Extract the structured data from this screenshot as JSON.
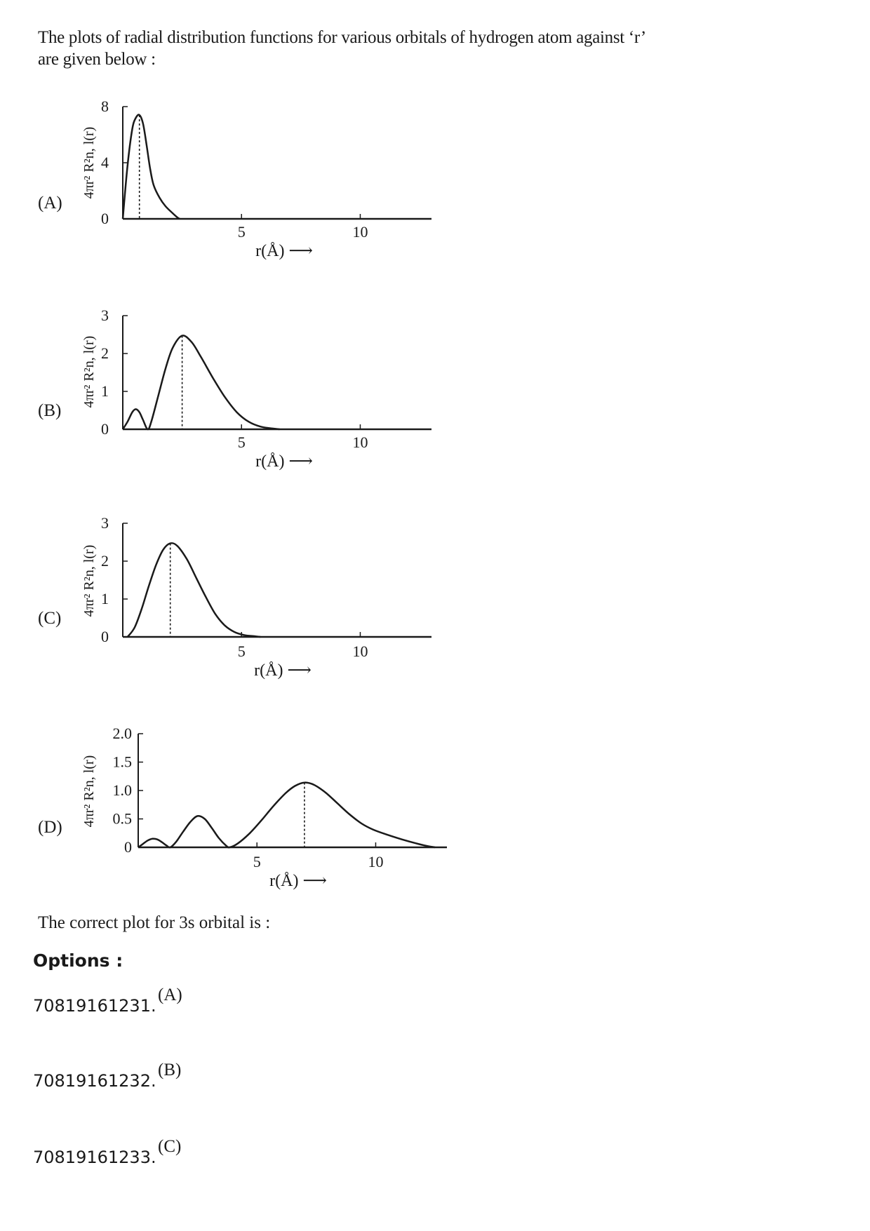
{
  "intro": "The plots of radial distribution functions for various orbitals of hydrogen atom against ‘r’ are given below :",
  "question": "The correct plot for 3s orbital is :",
  "options_heading": "Options :",
  "options": [
    {
      "id": "70819161231.",
      "value": "(A)"
    },
    {
      "id": "70819161232.",
      "value": "(B)"
    },
    {
      "id": "70819161233.",
      "value": "(C)"
    }
  ],
  "chart_data": [
    {
      "type": "line",
      "label": "(A)",
      "ylabel": "4πr² R²n, l(r)",
      "xlabel": "r(Å) ⟶",
      "xticks": [
        5,
        10
      ],
      "yticks": [
        "0",
        "4",
        "8"
      ],
      "xlim": [
        0,
        13
      ],
      "ylim": [
        0,
        8
      ],
      "peak_x": 0.7,
      "points": [
        [
          0,
          0
        ],
        [
          0.2,
          3.8
        ],
        [
          0.4,
          6.4
        ],
        [
          0.55,
          7.2
        ],
        [
          0.7,
          7.4
        ],
        [
          0.85,
          6.8
        ],
        [
          1.0,
          5.3
        ],
        [
          1.15,
          3.6
        ],
        [
          1.3,
          2.4
        ],
        [
          1.55,
          1.5
        ],
        [
          1.8,
          0.9
        ],
        [
          2.1,
          0.4
        ],
        [
          2.3,
          0.1
        ],
        [
          2.4,
          0
        ]
      ]
    },
    {
      "type": "line",
      "label": "(B)",
      "ylabel": "4πr² R²n, l(r)",
      "xlabel": "r(Å) ⟶",
      "xticks": [
        5,
        10
      ],
      "yticks": [
        "0",
        "1",
        "2",
        "3"
      ],
      "xlim": [
        0,
        13
      ],
      "ylim": [
        0,
        3
      ],
      "peak_x": 2.5,
      "points": [
        [
          0,
          0
        ],
        [
          0.2,
          0.2
        ],
        [
          0.4,
          0.45
        ],
        [
          0.55,
          0.53
        ],
        [
          0.7,
          0.45
        ],
        [
          0.85,
          0.25
        ],
        [
          1.05,
          0
        ],
        [
          1.2,
          0.2
        ],
        [
          1.5,
          0.9
        ],
        [
          1.8,
          1.6
        ],
        [
          2.1,
          2.15
        ],
        [
          2.5,
          2.47
        ],
        [
          2.9,
          2.3
        ],
        [
          3.3,
          1.9
        ],
        [
          3.8,
          1.35
        ],
        [
          4.3,
          0.85
        ],
        [
          4.8,
          0.45
        ],
        [
          5.3,
          0.2
        ],
        [
          5.8,
          0.07
        ],
        [
          6.3,
          0.02
        ],
        [
          6.6,
          0
        ]
      ]
    },
    {
      "type": "line",
      "label": "(C)",
      "ylabel": "4πr² R²n, l(r)",
      "xlabel": "r(Å) ⟶",
      "xticks": [
        5,
        10
      ],
      "yticks": [
        "0",
        "1",
        "2",
        "3"
      ],
      "xlim": [
        0,
        13
      ],
      "ylim": [
        0,
        3
      ],
      "peak_x": 2.0,
      "points": [
        [
          0.2,
          0
        ],
        [
          0.5,
          0.25
        ],
        [
          0.8,
          0.75
        ],
        [
          1.1,
          1.35
        ],
        [
          1.4,
          1.9
        ],
        [
          1.7,
          2.3
        ],
        [
          2.0,
          2.47
        ],
        [
          2.3,
          2.4
        ],
        [
          2.7,
          2.05
        ],
        [
          3.1,
          1.55
        ],
        [
          3.5,
          1.05
        ],
        [
          3.9,
          0.6
        ],
        [
          4.3,
          0.3
        ],
        [
          4.7,
          0.13
        ],
        [
          5.1,
          0.05
        ],
        [
          5.5,
          0.02
        ],
        [
          5.8,
          0
        ]
      ]
    },
    {
      "type": "line",
      "label": "(D)",
      "ylabel": "4πr² R²n, l(r)",
      "xlabel": "r(Å) ⟶",
      "xticks": [
        5,
        10
      ],
      "yticks": [
        "0",
        "0.5",
        "1.0",
        "1.5",
        "2.0"
      ],
      "xlim": [
        0,
        13
      ],
      "ylim": [
        0,
        2.0
      ],
      "peak_x": 7.0,
      "points": [
        [
          0,
          0
        ],
        [
          0.2,
          0.06
        ],
        [
          0.4,
          0.12
        ],
        [
          0.6,
          0.15
        ],
        [
          0.8,
          0.14
        ],
        [
          1.0,
          0.09
        ],
        [
          1.2,
          0.03
        ],
        [
          1.35,
          0
        ],
        [
          1.6,
          0.1
        ],
        [
          1.9,
          0.28
        ],
        [
          2.2,
          0.45
        ],
        [
          2.5,
          0.55
        ],
        [
          2.8,
          0.5
        ],
        [
          3.1,
          0.34
        ],
        [
          3.4,
          0.16
        ],
        [
          3.7,
          0.03
        ],
        [
          3.85,
          0
        ],
        [
          4.2,
          0.07
        ],
        [
          4.7,
          0.25
        ],
        [
          5.2,
          0.48
        ],
        [
          5.7,
          0.73
        ],
        [
          6.2,
          0.95
        ],
        [
          6.6,
          1.08
        ],
        [
          7.0,
          1.14
        ],
        [
          7.4,
          1.1
        ],
        [
          7.9,
          0.96
        ],
        [
          8.4,
          0.77
        ],
        [
          8.9,
          0.58
        ],
        [
          9.4,
          0.42
        ],
        [
          9.9,
          0.31
        ],
        [
          10.5,
          0.22
        ],
        [
          11.1,
          0.14
        ],
        [
          11.7,
          0.07
        ],
        [
          12.2,
          0.02
        ],
        [
          12.5,
          0
        ]
      ]
    }
  ]
}
